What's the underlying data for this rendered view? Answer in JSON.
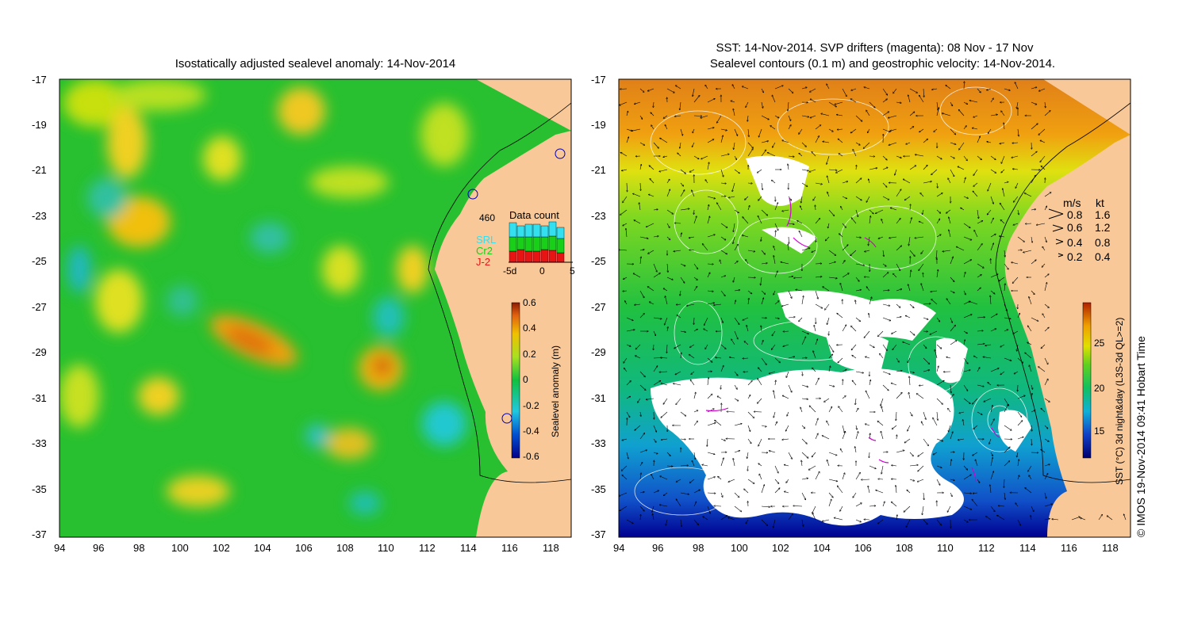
{
  "left_panel": {
    "title": "Isostatically adjusted sealevel anomaly: 14-Nov-2014",
    "y_ticks": [
      "-17",
      "-19",
      "-21",
      "-23",
      "-25",
      "-27",
      "-29",
      "-31",
      "-33",
      "-35",
      "-37"
    ],
    "x_ticks": [
      "94",
      "96",
      "98",
      "100",
      "102",
      "104",
      "106",
      "108",
      "110",
      "112",
      "114",
      "116",
      "118"
    ],
    "data_count": {
      "title": "Data count",
      "max_label": "460",
      "legend": [
        "SRL",
        "Cr2",
        "J-2"
      ],
      "x_ticks": [
        "-5d",
        "0",
        "5"
      ],
      "colors": {
        "SRL": "#33e0f0",
        "Cr2": "#19d019",
        "J-2": "#e81414"
      }
    },
    "colorbar": {
      "label": "Sealevel anomaly (m)",
      "ticks": [
        "0.6",
        "0.4",
        "0.2",
        "0",
        "-0.2",
        "-0.4",
        "-0.6"
      ]
    }
  },
  "right_panel": {
    "title_line1": "SST: 14-Nov-2014. SVP drifters (magenta): 08 Nov - 17 Nov",
    "title_line2": "Sealevel contours (0.1 m) and geostrophic velocity: 14-Nov-2014.",
    "y_ticks": [
      "-17",
      "-19",
      "-21",
      "-23",
      "-25",
      "-27",
      "-29",
      "-31",
      "-33",
      "-35",
      "-37"
    ],
    "x_ticks": [
      "94",
      "96",
      "98",
      "100",
      "102",
      "104",
      "106",
      "108",
      "110",
      "112",
      "114",
      "116",
      "118"
    ],
    "velocity_legend": {
      "header_ms": "m/s",
      "header_kt": "kt",
      "rows": [
        {
          "ms": "0.8",
          "kt": "1.6"
        },
        {
          "ms": "0.6",
          "kt": "1.2"
        },
        {
          "ms": "0.4",
          "kt": "0.8"
        },
        {
          "ms": "0.2",
          "kt": "0.4"
        }
      ]
    },
    "colorbar": {
      "label": "SST (°C) 3d night&day (L3S-3d QL>=2)",
      "ticks": [
        "25",
        "20",
        "15"
      ]
    }
  },
  "credit": "© IMOS 19-Nov-2014 09:41 Hobart Time"
}
